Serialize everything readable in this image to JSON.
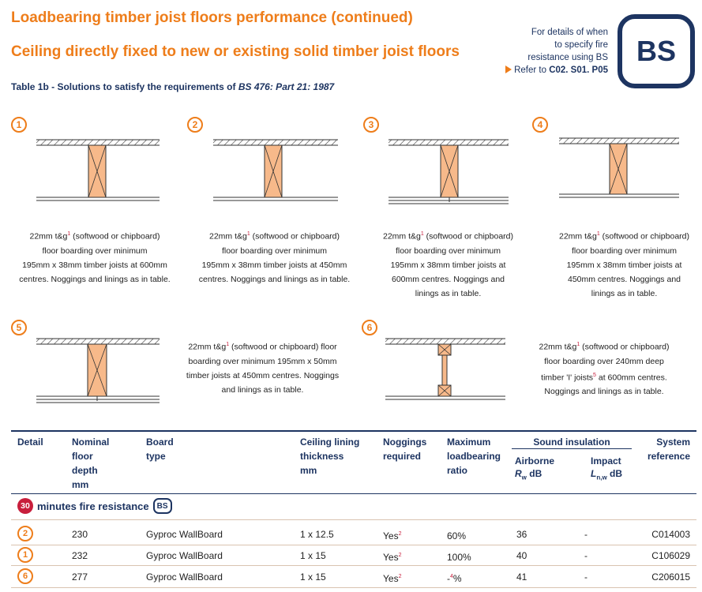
{
  "header": {
    "title": "Loadbearing timber joist floors performance (continued)",
    "subtitle": "Ceiling directly fixed to new or existing solid timber joist floors",
    "table_caption_prefix": "Table 1b - Solutions to satisfy the requirements of ",
    "table_caption_standard": "BS 476: Part 21: 1987"
  },
  "details_note": {
    "line1": "For details of when",
    "line2": "to specify fire",
    "line3": "resistance using BS",
    "refer_prefix": "Refer to ",
    "refer_code": "C02. S01. P05"
  },
  "badge": {
    "label": "BS"
  },
  "colors": {
    "orange": "#ee7d1a",
    "navy": "#1d3461",
    "red": "#c81e3c",
    "joist_fill": "#f7b98a"
  },
  "details": [
    {
      "num": "1",
      "lines": [
        "22mm t&g|1| (softwood or chipboard)",
        "floor boarding over minimum",
        "195mm x 38mm timber joists at 600mm",
        "centres. Noggings and linings as in table."
      ]
    },
    {
      "num": "2",
      "lines": [
        "22mm t&g|1| (softwood or chipboard)",
        "floor boarding over minimum",
        "195mm x 38mm timber joists at 450mm",
        "centres. Noggings and linings as in table."
      ]
    },
    {
      "num": "3",
      "lines": [
        "22mm t&g|1| (softwood or chipboard)",
        "floor boarding over minimum",
        "195mm x 38mm timber joists at",
        "600mm centres. Noggings and",
        "linings as in table."
      ]
    },
    {
      "num": "4",
      "lines": [
        "22mm t&g|1| (softwood or chipboard)",
        "floor boarding over minimum",
        "195mm x 38mm timber joists at",
        "450mm centres. Noggings and",
        "linings as in table."
      ]
    },
    {
      "num": "5",
      "lines": [
        "22mm t&g|1| (softwood or chipboard) floor",
        "boarding over minimum 195mm x 50mm",
        "timber joists at 450mm centres. Noggings",
        "and linings as in table."
      ]
    },
    {
      "num": "6",
      "lines": [
        "22mm t&g|1| (softwood or chipboard)",
        "floor boarding over 240mm deep",
        "timber 'I' joists|5| at 600mm centres.",
        "Noggings and linings as in table."
      ]
    }
  ],
  "table": {
    "headers": {
      "detail": "Detail",
      "nominal_1": "Nominal",
      "nominal_2": "floor",
      "nominal_3": "depth",
      "nominal_4": "mm",
      "board_1": "Board",
      "board_2": "type",
      "ceiling_1": "Ceiling lining",
      "ceiling_2": "thickness",
      "ceiling_3": "mm",
      "noggings_1": "Noggings",
      "noggings_2": "required",
      "max_1": "Maximum",
      "max_2": "loadbearing",
      "max_3": "ratio",
      "sound": "Sound insulation",
      "airborne": "Airborne",
      "airborne_sym": "R",
      "airborne_sub": "w",
      "airborne_unit": " dB",
      "impact": "Impact",
      "impact_sym": "L",
      "impact_sub": "n,w",
      "impact_unit": " dB",
      "system_1": "System",
      "system_2": "reference"
    },
    "section": {
      "minutes": "30",
      "label": "minutes fire resistance",
      "badge": "BS"
    },
    "rows": [
      {
        "detail": "2",
        "depth": "230",
        "board": "Gyproc WallBoard",
        "ceiling": "1 x 12.5",
        "noggings": "Yes",
        "noggings_note": "2",
        "ratio_pre": "60%",
        "ratio_note": "",
        "ratio_post": "",
        "airborne": "36",
        "impact": "-",
        "ref": "C014003"
      },
      {
        "detail": "1",
        "depth": "232",
        "board": "Gyproc WallBoard",
        "ceiling": "1 x 15",
        "noggings": "Yes",
        "noggings_note": "2",
        "ratio_pre": "100%",
        "ratio_note": "",
        "ratio_post": "",
        "airborne": "40",
        "impact": "-",
        "ref": "C106029"
      },
      {
        "detail": "6",
        "depth": "277",
        "board": "Gyproc WallBoard",
        "ceiling": "1 x 15",
        "noggings": "Yes",
        "noggings_note": "2",
        "ratio_pre": "-",
        "ratio_note": "4",
        "ratio_post": "%",
        "airborne": "41",
        "impact": "-",
        "ref": "C206015"
      }
    ]
  }
}
